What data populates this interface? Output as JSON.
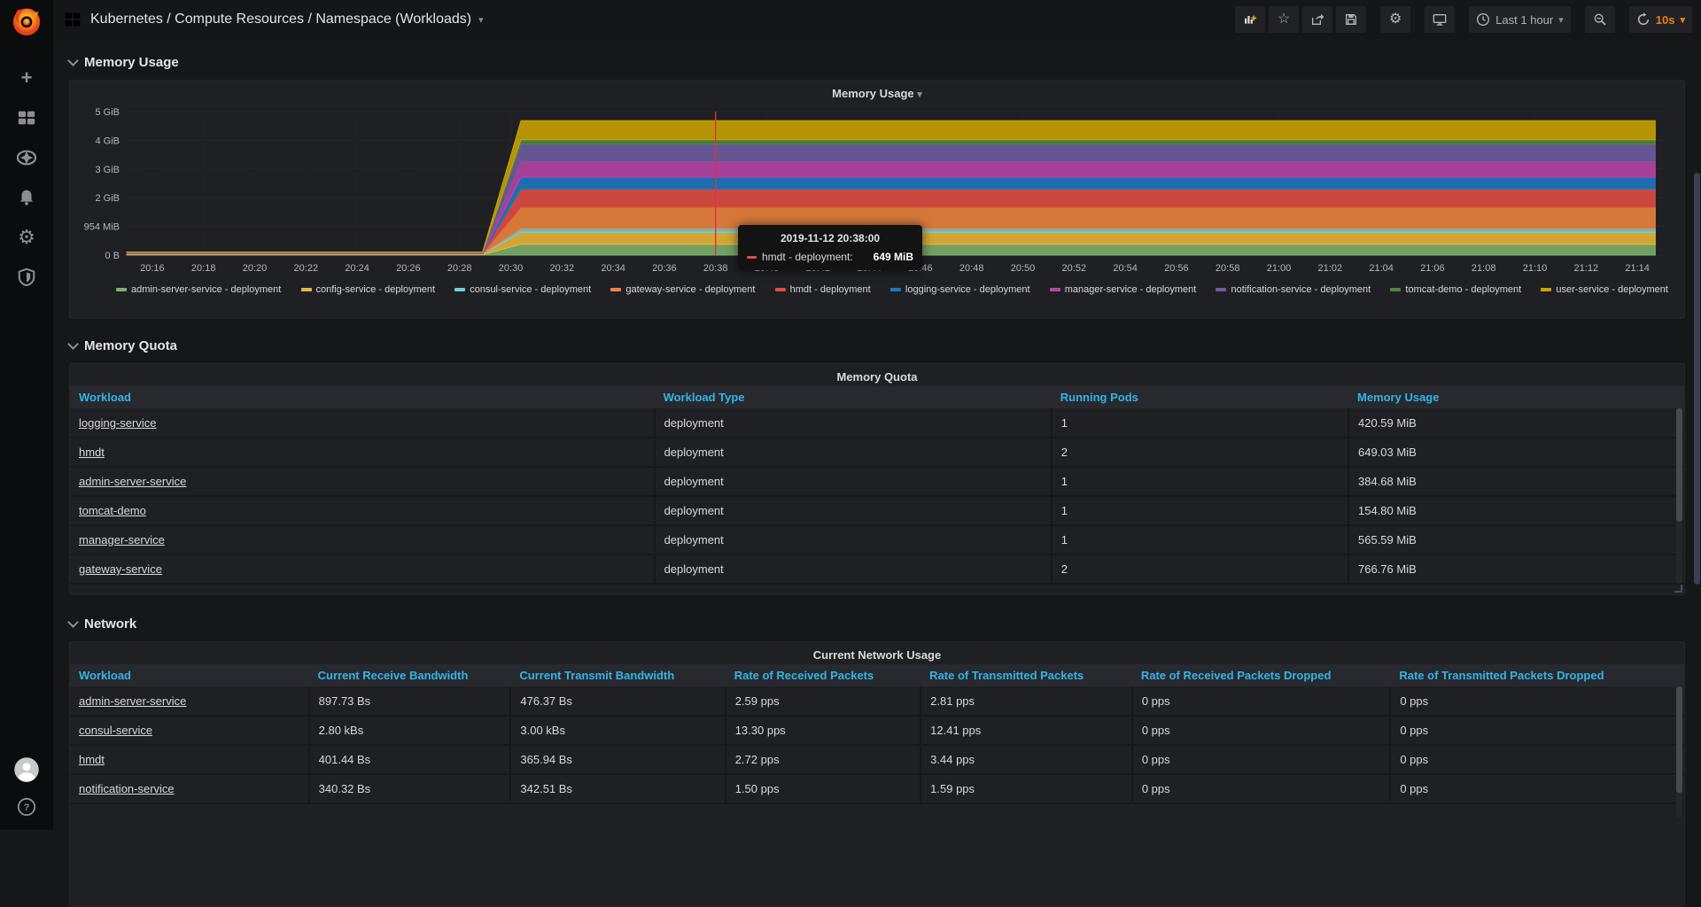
{
  "nav": {
    "title": "Kubernetes / Compute Resources / Namespace (Workloads)",
    "time_range_label": "Last 1 hour",
    "refresh_interval": "10s"
  },
  "icons": {
    "grafana_logo": "flame-swirl",
    "dashboard_grid": "four-squares",
    "add_panel": "bar-chart-plus",
    "star": "☆",
    "share": "arrow-out-of-box",
    "save": "floppy-disk",
    "settings_gear": "⚙",
    "kiosk_monitor": "monitor",
    "clock": "clock-face",
    "zoom_out": "magnifier-minus",
    "refresh": "circular-arrows",
    "caret_down": "▾",
    "sidebar_create": "+",
    "sidebar_dashboards": "four-squares",
    "sidebar_explore": "compass",
    "sidebar_alerting": "bell",
    "sidebar_configuration": "⚙",
    "sidebar_server_admin": "shield",
    "user_avatar": "person-circle",
    "help": "?"
  },
  "colors": {
    "accent_orange": "#eb7b18",
    "table_header_blue": "#33b5e5",
    "crosshair_red": "#e02f44",
    "panel_bg": "#1f2023",
    "body_bg": "#161719"
  },
  "sections": {
    "memory_usage_label": "Memory Usage",
    "memory_quota_label": "Memory Quota",
    "network_label": "Network"
  },
  "chart_data": {
    "type": "area",
    "stacked": true,
    "title": "Memory Usage",
    "ylabel": "",
    "xlabel": "",
    "time_range": [
      "20:15",
      "21:15"
    ],
    "y_ticks_bottom_up": [
      "0 B",
      "954 MiB",
      "2 GiB",
      "3 GiB",
      "4 GiB",
      "5 GiB"
    ],
    "ylim_gib": [
      0,
      5
    ],
    "x_ticks": [
      "20:16",
      "20:18",
      "20:20",
      "20:22",
      "20:24",
      "20:26",
      "20:28",
      "20:30",
      "20:32",
      "20:34",
      "20:36",
      "20:38",
      "20:40",
      "20:42",
      "20:44",
      "20:46",
      "20:48",
      "20:50",
      "20:52",
      "20:54",
      "20:56",
      "20:58",
      "21:00",
      "21:02",
      "21:04",
      "21:06",
      "21:08",
      "21:10",
      "21:12",
      "21:14"
    ],
    "grid": true,
    "legend_position": "bottom",
    "ramp_minutes_from_start": [
      13.9,
      15.4
    ],
    "crosshair_minutes_from_start": 23,
    "series": [
      {
        "name": "admin-server-service - deployment",
        "color": "#7EB26D",
        "before_ramp_mib": 15,
        "after_ramp_mib": 385
      },
      {
        "name": "config-service - deployment",
        "color": "#EAB839",
        "before_ramp_mib": 15,
        "after_ramp_mib": 430
      },
      {
        "name": "consul-service - deployment",
        "color": "#6ED0E0",
        "before_ramp_mib": 8,
        "after_ramp_mib": 125
      },
      {
        "name": "gateway-service - deployment",
        "color": "#EF843C",
        "before_ramp_mib": 15,
        "after_ramp_mib": 767
      },
      {
        "name": "hmdt - deployment",
        "color": "#E24D42",
        "before_ramp_mib": 10,
        "after_ramp_mib": 649
      },
      {
        "name": "logging-service - deployment",
        "color": "#1F78C1",
        "before_ramp_mib": 10,
        "after_ramp_mib": 421
      },
      {
        "name": "manager-service - deployment",
        "color": "#BA43A9",
        "before_ramp_mib": 10,
        "after_ramp_mib": 566
      },
      {
        "name": "notification-service - deployment",
        "color": "#705DA0",
        "before_ramp_mib": 10,
        "after_ramp_mib": 620
      },
      {
        "name": "tomcat-demo - deployment",
        "color": "#508642",
        "before_ramp_mib": 8,
        "after_ramp_mib": 155
      },
      {
        "name": "user-service - deployment",
        "color": "#CCA300",
        "before_ramp_mib": 10,
        "after_ramp_mib": 680
      }
    ],
    "tooltip": {
      "time": "2019-11-12 20:38:00",
      "series_label": "hmdt - deployment:",
      "value": "649 MiB",
      "series_color": "#E24D42"
    }
  },
  "memory_quota": {
    "panel_title": "Memory Quota",
    "columns": [
      "Workload",
      "Workload Type",
      "Running Pods",
      "Memory Usage"
    ],
    "rows": [
      [
        "logging-service",
        "deployment",
        "1",
        "420.59 MiB"
      ],
      [
        "hmdt",
        "deployment",
        "2",
        "649.03 MiB"
      ],
      [
        "admin-server-service",
        "deployment",
        "1",
        "384.68 MiB"
      ],
      [
        "tomcat-demo",
        "deployment",
        "1",
        "154.80 MiB"
      ],
      [
        "manager-service",
        "deployment",
        "1",
        "565.59 MiB"
      ],
      [
        "gateway-service",
        "deployment",
        "2",
        "766.76 MiB"
      ]
    ]
  },
  "network": {
    "panel_title": "Current Network Usage",
    "columns": [
      "Workload",
      "Current Receive Bandwidth",
      "Current Transmit Bandwidth",
      "Rate of Received Packets",
      "Rate of Transmitted Packets",
      "Rate of Received Packets Dropped",
      "Rate of Transmitted Packets Dropped"
    ],
    "rows": [
      [
        "admin-server-service",
        "897.73 Bs",
        "476.37 Bs",
        "2.59 pps",
        "2.81 pps",
        "0 pps",
        "0 pps"
      ],
      [
        "consul-service",
        "2.80 kBs",
        "3.00 kBs",
        "13.30 pps",
        "12.41 pps",
        "0 pps",
        "0 pps"
      ],
      [
        "hmdt",
        "401.44 Bs",
        "365.94 Bs",
        "2.72 pps",
        "3.44 pps",
        "0 pps",
        "0 pps"
      ],
      [
        "notification-service",
        "340.32 Bs",
        "342.51 Bs",
        "1.50 pps",
        "1.59 pps",
        "0 pps",
        "0 pps"
      ]
    ]
  }
}
